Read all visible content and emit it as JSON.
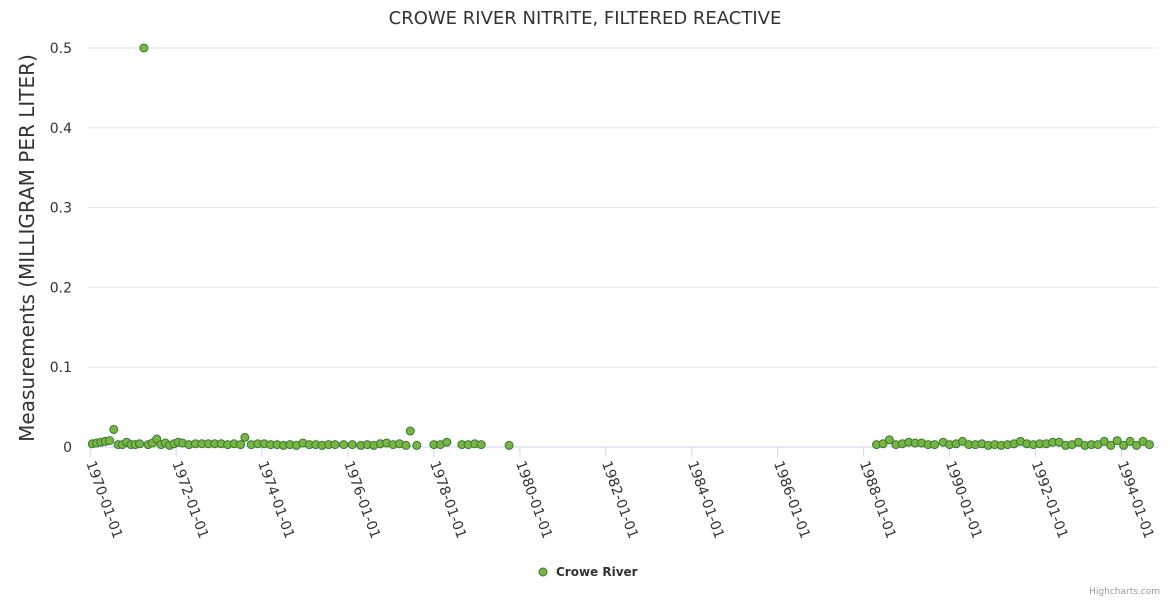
{
  "chart_data": {
    "type": "scatter",
    "title": "CROWE RIVER NITRITE, FILTERED REACTIVE",
    "xlabel": "",
    "ylabel": "Measurements (MILLIGRAM PER LITER)",
    "ylim": [
      0,
      0.5
    ],
    "yticks": [
      "0",
      "0.1",
      "0.2",
      "0.3",
      "0.4",
      "0.5"
    ],
    "ytick_values": [
      0,
      0.1,
      0.2,
      0.3,
      0.4,
      0.5
    ],
    "xlim": [
      1969.95,
      1994.85
    ],
    "xticks": [
      "1970-01-01",
      "1972-01-01",
      "1974-01-01",
      "1976-01-01",
      "1978-01-01",
      "1980-01-01",
      "1982-01-01",
      "1984-01-01",
      "1986-01-01",
      "1988-01-01",
      "1990-01-01",
      "1992-01-01",
      "1994-01-01"
    ],
    "xtick_values": [
      1970,
      1972,
      1974,
      1976,
      1978,
      1980,
      1982,
      1984,
      1986,
      1988,
      1990,
      1992,
      1994
    ],
    "legend": "bottom-center",
    "color": "#7cb342",
    "series": [
      {
        "name": "Crowe River",
        "points": [
          [
            1970.05,
            0.004
          ],
          [
            1970.15,
            0.005
          ],
          [
            1970.25,
            0.006
          ],
          [
            1970.35,
            0.007
          ],
          [
            1970.45,
            0.008
          ],
          [
            1970.55,
            0.022
          ],
          [
            1970.65,
            0.003
          ],
          [
            1970.75,
            0.003
          ],
          [
            1970.85,
            0.006
          ],
          [
            1970.95,
            0.003
          ],
          [
            1971.05,
            0.003
          ],
          [
            1971.15,
            0.004
          ],
          [
            1971.25,
            0.5
          ],
          [
            1971.35,
            0.003
          ],
          [
            1971.45,
            0.005
          ],
          [
            1971.55,
            0.01
          ],
          [
            1971.65,
            0.003
          ],
          [
            1971.75,
            0.005
          ],
          [
            1971.85,
            0.002
          ],
          [
            1971.95,
            0.004
          ],
          [
            1972.05,
            0.006
          ],
          [
            1972.15,
            0.005
          ],
          [
            1972.3,
            0.003
          ],
          [
            1972.45,
            0.004
          ],
          [
            1972.6,
            0.004
          ],
          [
            1972.75,
            0.004
          ],
          [
            1972.9,
            0.004
          ],
          [
            1973.05,
            0.004
          ],
          [
            1973.2,
            0.003
          ],
          [
            1973.35,
            0.004
          ],
          [
            1973.5,
            0.003
          ],
          [
            1973.6,
            0.012
          ],
          [
            1973.75,
            0.003
          ],
          [
            1973.9,
            0.004
          ],
          [
            1974.05,
            0.004
          ],
          [
            1974.2,
            0.003
          ],
          [
            1974.35,
            0.003
          ],
          [
            1974.5,
            0.002
          ],
          [
            1974.65,
            0.003
          ],
          [
            1974.8,
            0.002
          ],
          [
            1974.95,
            0.005
          ],
          [
            1975.1,
            0.003
          ],
          [
            1975.25,
            0.003
          ],
          [
            1975.4,
            0.002
          ],
          [
            1975.55,
            0.003
          ],
          [
            1975.7,
            0.003
          ],
          [
            1975.9,
            0.003
          ],
          [
            1976.1,
            0.003
          ],
          [
            1976.3,
            0.002
          ],
          [
            1976.45,
            0.003
          ],
          [
            1976.6,
            0.002
          ],
          [
            1976.75,
            0.004
          ],
          [
            1976.9,
            0.005
          ],
          [
            1977.05,
            0.003
          ],
          [
            1977.2,
            0.004
          ],
          [
            1977.35,
            0.002
          ],
          [
            1977.45,
            0.02
          ],
          [
            1977.6,
            0.002
          ],
          [
            1978.0,
            0.003
          ],
          [
            1978.15,
            0.003
          ],
          [
            1978.3,
            0.006
          ],
          [
            1978.65,
            0.003
          ],
          [
            1978.8,
            0.003
          ],
          [
            1978.95,
            0.004
          ],
          [
            1979.1,
            0.003
          ],
          [
            1979.75,
            0.002
          ],
          [
            1988.3,
            0.003
          ],
          [
            1988.45,
            0.004
          ],
          [
            1988.6,
            0.009
          ],
          [
            1988.75,
            0.003
          ],
          [
            1988.9,
            0.004
          ],
          [
            1989.05,
            0.006
          ],
          [
            1989.2,
            0.005
          ],
          [
            1989.35,
            0.005
          ],
          [
            1989.5,
            0.003
          ],
          [
            1989.65,
            0.003
          ],
          [
            1989.85,
            0.006
          ],
          [
            1990.0,
            0.003
          ],
          [
            1990.15,
            0.004
          ],
          [
            1990.3,
            0.007
          ],
          [
            1990.45,
            0.003
          ],
          [
            1990.6,
            0.003
          ],
          [
            1990.75,
            0.004
          ],
          [
            1990.9,
            0.002
          ],
          [
            1991.05,
            0.003
          ],
          [
            1991.2,
            0.002
          ],
          [
            1991.35,
            0.003
          ],
          [
            1991.5,
            0.004
          ],
          [
            1991.65,
            0.007
          ],
          [
            1991.8,
            0.004
          ],
          [
            1991.95,
            0.003
          ],
          [
            1992.1,
            0.004
          ],
          [
            1992.25,
            0.004
          ],
          [
            1992.4,
            0.006
          ],
          [
            1992.55,
            0.006
          ],
          [
            1992.7,
            0.002
          ],
          [
            1992.85,
            0.003
          ],
          [
            1993.0,
            0.006
          ],
          [
            1993.15,
            0.002
          ],
          [
            1993.3,
            0.003
          ],
          [
            1993.45,
            0.003
          ],
          [
            1993.6,
            0.007
          ],
          [
            1993.75,
            0.002
          ],
          [
            1993.9,
            0.008
          ],
          [
            1994.05,
            0.002
          ],
          [
            1994.2,
            0.007
          ],
          [
            1994.35,
            0.002
          ],
          [
            1994.5,
            0.007
          ],
          [
            1994.65,
            0.003
          ]
        ]
      }
    ]
  },
  "credits": "Highcharts.com"
}
